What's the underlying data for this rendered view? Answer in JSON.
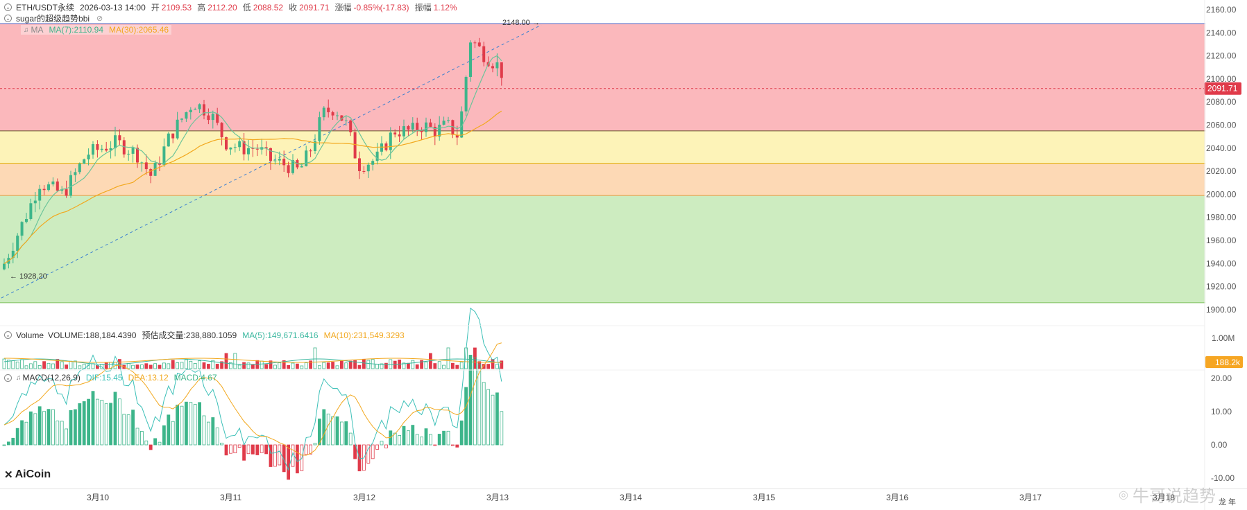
{
  "header": {
    "symbol": "ETH/USDT永续",
    "datetime": "2026-03-13 14:00",
    "open_label": "开",
    "open": "2109.53",
    "high_label": "高",
    "high": "2112.20",
    "low_label": "低",
    "low": "2088.52",
    "close_label": "收",
    "close": "2091.71",
    "change_label": "涨幅",
    "change": "-0.85%(-17.83)",
    "amplitude_label": "振幅",
    "amplitude": "1.12%"
  },
  "indicator_sugar": {
    "name": "sugar的超级趋势bbi"
  },
  "indicator_ma": {
    "name": "MA",
    "ma7": "MA(7):2110.94",
    "ma30": "MA(30):2065.46"
  },
  "volume_panel": {
    "name": "Volume",
    "volume": "VOLUME:188,184.4390",
    "forecast": "预估成交量:238,880.1059",
    "ma5": "MA(5):149,671.6416",
    "ma10": "MA(10):231,549.3293",
    "axis_1m": "1.00M",
    "current_tag": "188.2k"
  },
  "macd_panel": {
    "name": "MACD(12,26,9)",
    "dif": "DIF:15.45",
    "dea": "DEA:13.12",
    "macd": "MACD:4.67",
    "ticks": [
      "20.00",
      "10.00",
      "0.00",
      "-10.00"
    ]
  },
  "price_axis": {
    "ticks": [
      "2160.00",
      "2140.00",
      "2120.00",
      "2100.00",
      "2080.00",
      "2060.00",
      "2040.00",
      "2020.00",
      "2000.00",
      "1980.00",
      "1960.00",
      "1940.00",
      "1920.00",
      "1900.00"
    ],
    "current_price": "2091.71"
  },
  "annotations": {
    "high_label": "2148.00",
    "low_label": "1928.20"
  },
  "time_axis": [
    "3月10",
    "3月11",
    "3月12",
    "3月13",
    "3月14",
    "3月15",
    "3月16",
    "3月17",
    "3月18"
  ],
  "corner_label": "龙 年",
  "logo": {
    "text": "AiCoin"
  },
  "watermark": {
    "text": "牛哥说趋势"
  },
  "colors": {
    "zone_red": "#fbb8bc",
    "zone_yellow": "#fdf3b8",
    "zone_orange": "#fdd9b5",
    "zone_green": "#cdecc0",
    "up": "#3db58a",
    "down": "#e03b4a",
    "ma7": "#6cc49a",
    "ma30": "#f2a81e",
    "dif": "#3cc0b8",
    "dea": "#f2a81e"
  },
  "chart_data": {
    "type": "candlestick",
    "timeframe": "1h",
    "ylim": [
      1900,
      2160
    ],
    "x_categories": [
      "3月10",
      "3月11",
      "3月12",
      "3月13",
      "3月14",
      "3月15",
      "3月16",
      "3月17",
      "3月18"
    ],
    "annotated_high": 2148.0,
    "annotated_low": 1928.2,
    "last_close": 2091.71,
    "ohlc_last": {
      "open": 2109.53,
      "high": 2112.2,
      "low": 2088.52,
      "close": 2091.71
    },
    "zones": [
      {
        "from": 2055,
        "to": 2148
      },
      {
        "from": 2027,
        "to": 2055
      },
      {
        "from": 1999,
        "to": 2027
      },
      {
        "from": 1906,
        "to": 1999
      }
    ],
    "ma7_last": 2110.94,
    "ma30_last": 2065.46
  }
}
